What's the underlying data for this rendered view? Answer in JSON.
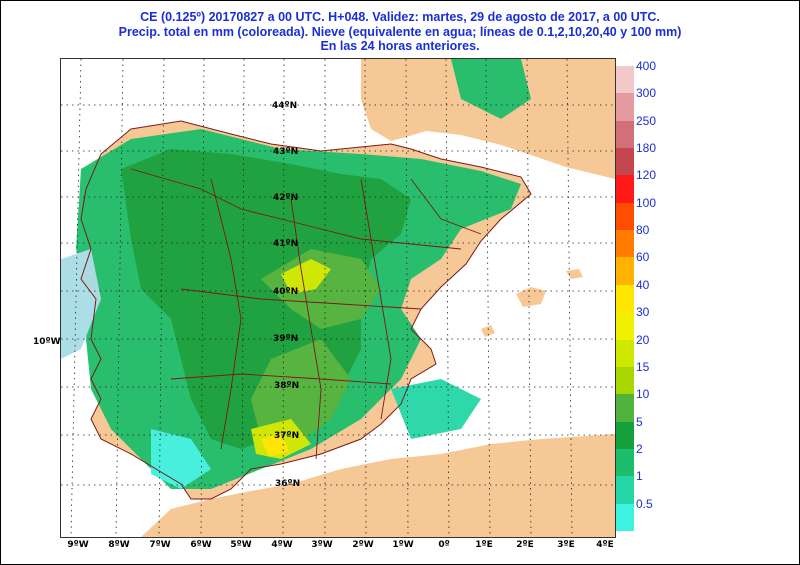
{
  "header": {
    "line1": "CE (0.125º) 20170827 a 00 UTC.  H+048. Validez: martes, 29 de agosto de 2017,  a  00 UTC.",
    "line2": "Precip. total en mm (coloreada). Nieve (equivalente en agua; líneas de 0.1,2,10,20,40 y 100 mm)",
    "line3": "En las 24 horas anteriores."
  },
  "axes": {
    "longitudes": [
      "9ºW",
      "8ºW",
      "7ºW",
      "6ºW",
      "5ºW",
      "4ºW",
      "3ºW",
      "2ºW",
      "1ºW",
      "0º",
      "1ºE",
      "2ºE",
      "3ºE",
      "4ºE"
    ],
    "side_label": "10ºW",
    "latitudes": [
      "44ºN",
      "43ºN",
      "42ºN",
      "41ºN",
      "40ºN",
      "39ºN",
      "38ºN",
      "37ºN",
      "36ºN"
    ]
  },
  "legend": {
    "title": "",
    "levels": [
      {
        "label": "400",
        "color": "#f2c8c8"
      },
      {
        "label": "300",
        "color": "#e39ba0"
      },
      {
        "label": "250",
        "color": "#d2707a"
      },
      {
        "label": "180",
        "color": "#c4474f"
      },
      {
        "label": "120",
        "color": "#ff1a1a"
      },
      {
        "label": "100",
        "color": "#ff4d00"
      },
      {
        "label": "80",
        "color": "#ff7c00"
      },
      {
        "label": "60",
        "color": "#ffb300"
      },
      {
        "label": "40",
        "color": "#ffe600"
      },
      {
        "label": "30",
        "color": "#f0f000"
      },
      {
        "label": "20",
        "color": "#cfe800"
      },
      {
        "label": "15",
        "color": "#a8d600"
      },
      {
        "label": "10",
        "color": "#50b33c"
      },
      {
        "label": "5",
        "color": "#16a03c"
      },
      {
        "label": "2",
        "color": "#1dbe6b"
      },
      {
        "label": "1",
        "color": "#24d6a6"
      },
      {
        "label": "0.5",
        "color": "#3ef2e0"
      }
    ],
    "bottom_color": "#a8dde6"
  },
  "map": {
    "sea_color": "#ffffff",
    "land_color": "#f6c896",
    "border_color": "#7a1a1a",
    "grid_color": "#222222"
  }
}
